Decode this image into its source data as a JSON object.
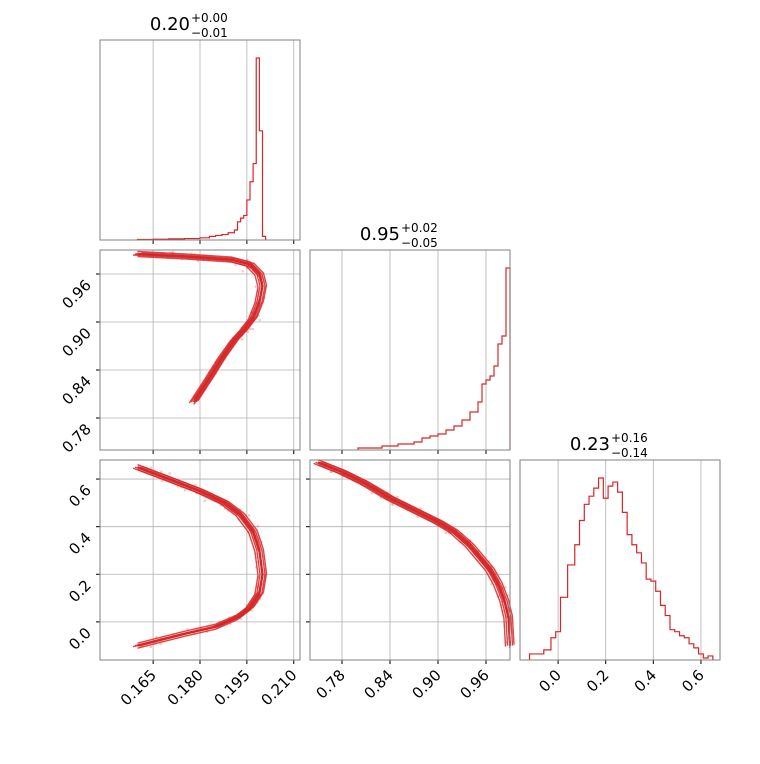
{
  "colors": {
    "series": "#d62728",
    "grid": "#b0b0b0",
    "frame": "#808080"
  },
  "chart_data": {
    "type": "corner",
    "grid": true,
    "panels": [
      {
        "id": "hist-p0",
        "type": "histogram",
        "title": {
          "value": "0.20",
          "plus": "+0.00",
          "minus": "−0.01"
        },
        "xlim": [
          0.148,
          0.212
        ],
        "bins": [
          [
            0.16,
            0.003
          ],
          [
            0.165,
            0.004
          ],
          [
            0.17,
            0.006
          ],
          [
            0.175,
            0.008
          ],
          [
            0.18,
            0.012
          ],
          [
            0.183,
            0.02
          ],
          [
            0.185,
            0.025
          ],
          [
            0.187,
            0.03
          ],
          [
            0.189,
            0.04
          ],
          [
            0.191,
            0.055
          ],
          [
            0.192,
            0.1
          ],
          [
            0.193,
            0.12
          ],
          [
            0.194,
            0.135
          ],
          [
            0.195,
            0.22
          ],
          [
            0.196,
            0.32
          ],
          [
            0.197,
            0.42
          ],
          [
            0.198,
            1.0
          ],
          [
            0.199,
            0.6
          ],
          [
            0.2,
            0.02
          ],
          [
            0.201,
            0.0
          ]
        ]
      },
      {
        "id": "hist-p1",
        "type": "histogram",
        "title": {
          "value": "0.95",
          "plus": "+0.02",
          "minus": "−0.05"
        },
        "xlim": [
          0.74,
          0.99
        ],
        "bins": [
          [
            0.8,
            0.01
          ],
          [
            0.83,
            0.02
          ],
          [
            0.85,
            0.03
          ],
          [
            0.87,
            0.04
          ],
          [
            0.88,
            0.06
          ],
          [
            0.89,
            0.07
          ],
          [
            0.9,
            0.08
          ],
          [
            0.91,
            0.1
          ],
          [
            0.92,
            0.12
          ],
          [
            0.93,
            0.15
          ],
          [
            0.94,
            0.19
          ],
          [
            0.95,
            0.24
          ],
          [
            0.955,
            0.33
          ],
          [
            0.96,
            0.35
          ],
          [
            0.965,
            0.37
          ],
          [
            0.97,
            0.42
          ],
          [
            0.975,
            0.53
          ],
          [
            0.98,
            0.57
          ],
          [
            0.985,
            0.91
          ],
          [
            0.99,
            0.0
          ]
        ]
      },
      {
        "id": "hist-p2",
        "type": "histogram",
        "title": {
          "value": "0.23",
          "plus": "+0.16",
          "minus": "−0.14"
        },
        "xlim": [
          -0.16,
          0.68
        ],
        "bins": [
          [
            -0.12,
            0.03
          ],
          [
            -0.06,
            0.05
          ],
          [
            -0.03,
            0.11
          ],
          [
            -0.01,
            0.14
          ],
          [
            0.01,
            0.31
          ],
          [
            0.04,
            0.47
          ],
          [
            0.07,
            0.57
          ],
          [
            0.09,
            0.69
          ],
          [
            0.11,
            0.77
          ],
          [
            0.13,
            0.81
          ],
          [
            0.15,
            0.85
          ],
          [
            0.17,
            0.9
          ],
          [
            0.19,
            0.8
          ],
          [
            0.21,
            0.86
          ],
          [
            0.23,
            0.88
          ],
          [
            0.25,
            0.83
          ],
          [
            0.27,
            0.73
          ],
          [
            0.29,
            0.62
          ],
          [
            0.31,
            0.57
          ],
          [
            0.33,
            0.53
          ],
          [
            0.35,
            0.48
          ],
          [
            0.37,
            0.4
          ],
          [
            0.39,
            0.39
          ],
          [
            0.41,
            0.34
          ],
          [
            0.43,
            0.27
          ],
          [
            0.45,
            0.22
          ],
          [
            0.47,
            0.15
          ],
          [
            0.49,
            0.14
          ],
          [
            0.51,
            0.12
          ],
          [
            0.53,
            0.11
          ],
          [
            0.55,
            0.08
          ],
          [
            0.57,
            0.06
          ],
          [
            0.59,
            0.03
          ],
          [
            0.61,
            0.01
          ],
          [
            0.63,
            0.02
          ],
          [
            0.65,
            0.0
          ]
        ]
      },
      {
        "id": "scatter-p1-vs-p0",
        "type": "contour",
        "xlim": [
          0.148,
          0.212
        ],
        "ylim": [
          0.74,
          0.99
        ],
        "ridge": [
          [
            0.16,
            0.985
          ],
          [
            0.175,
            0.982
          ],
          [
            0.19,
            0.978
          ],
          [
            0.196,
            0.972
          ],
          [
            0.199,
            0.96
          ],
          [
            0.2,
            0.945
          ],
          [
            0.199,
            0.925
          ],
          [
            0.197,
            0.905
          ],
          [
            0.194,
            0.89
          ],
          [
            0.191,
            0.877
          ],
          [
            0.187,
            0.855
          ],
          [
            0.183,
            0.83
          ],
          [
            0.178,
            0.8
          ]
        ]
      },
      {
        "id": "scatter-p2-vs-p0",
        "type": "contour",
        "xlim": [
          0.148,
          0.212
        ],
        "ylim": [
          -0.16,
          0.68
        ],
        "ridge": [
          [
            0.16,
            0.65
          ],
          [
            0.17,
            0.6
          ],
          [
            0.18,
            0.55
          ],
          [
            0.188,
            0.5
          ],
          [
            0.193,
            0.45
          ],
          [
            0.197,
            0.38
          ],
          [
            0.199,
            0.3
          ],
          [
            0.2,
            0.2
          ],
          [
            0.199,
            0.12
          ],
          [
            0.196,
            0.06
          ],
          [
            0.192,
            0.02
          ],
          [
            0.185,
            -0.02
          ],
          [
            0.175,
            -0.05
          ],
          [
            0.16,
            -0.1
          ]
        ]
      },
      {
        "id": "scatter-p2-vs-p1",
        "type": "contour",
        "xlim": [
          0.74,
          0.99
        ],
        "ylim": [
          -0.16,
          0.68
        ],
        "ridge": [
          [
            0.75,
            0.67
          ],
          [
            0.78,
            0.63
          ],
          [
            0.81,
            0.58
          ],
          [
            0.84,
            0.52
          ],
          [
            0.87,
            0.47
          ],
          [
            0.9,
            0.42
          ],
          [
            0.92,
            0.38
          ],
          [
            0.94,
            0.32
          ],
          [
            0.955,
            0.26
          ],
          [
            0.965,
            0.22
          ],
          [
            0.975,
            0.16
          ],
          [
            0.983,
            0.09
          ],
          [
            0.988,
            0.02
          ],
          [
            0.99,
            -0.1
          ]
        ]
      }
    ],
    "axes": {
      "p0": {
        "ticks": [
          0.165,
          0.18,
          0.195,
          0.21
        ],
        "labels": [
          "0.165",
          "0.180",
          "0.195",
          "0.210"
        ]
      },
      "p1": {
        "ticks": [
          0.78,
          0.84,
          0.9,
          0.96
        ],
        "labels": [
          "0.78",
          "0.84",
          "0.90",
          "0.96"
        ]
      },
      "p2": {
        "ticks": [
          0.0,
          0.2,
          0.4,
          0.6
        ],
        "labels": [
          "0.0",
          "0.2",
          "0.4",
          "0.6"
        ]
      }
    }
  }
}
